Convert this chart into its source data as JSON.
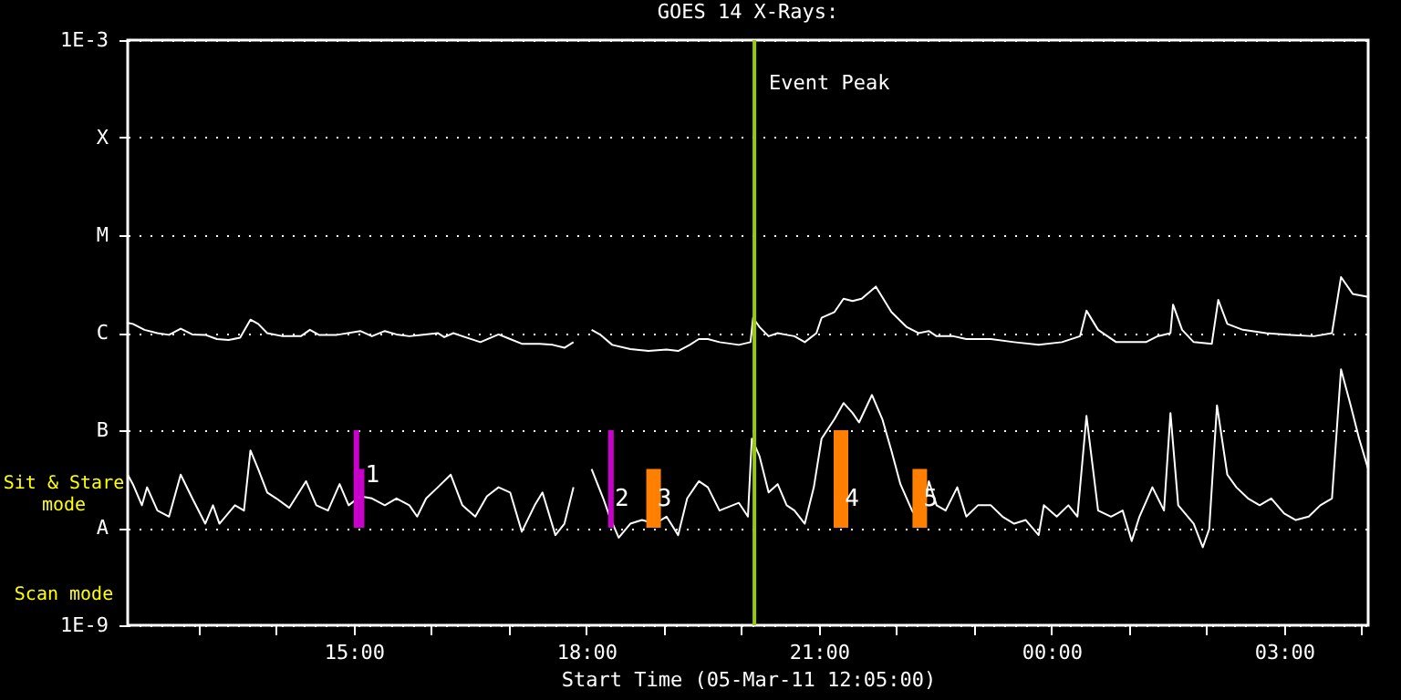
{
  "chart_data": {
    "type": "line",
    "title": "GOES 14 X-Rays:",
    "xlabel": "Start Time (05-Mar-11 12:05:00)",
    "xlim": [
      "--03-05T12:05",
      "--03-06T04:05"
    ],
    "xticks": [
      {
        "value": "--03-05T13:00",
        "label": null
      },
      {
        "value": "--03-05T14:00",
        "label": null
      },
      {
        "value": "--03-05T15:00",
        "label": "15:00"
      },
      {
        "value": "--03-05T16:00",
        "label": null
      },
      {
        "value": "--03-05T17:00",
        "label": null
      },
      {
        "value": "--03-05T18:00",
        "label": "18:00"
      },
      {
        "value": "--03-05T19:00",
        "label": null
      },
      {
        "value": "--03-05T20:00",
        "label": null
      },
      {
        "value": "--03-05T21:00",
        "label": "21:00"
      },
      {
        "value": "--03-05T22:00",
        "label": null
      },
      {
        "value": "--03-05T23:00",
        "label": null
      },
      {
        "value": "--03-06T00:00",
        "label": "00:00"
      },
      {
        "value": "--03-06T01:00",
        "label": null
      },
      {
        "value": "--03-06T02:00",
        "label": null
      },
      {
        "value": "--03-06T03:00",
        "label": "03:00"
      },
      {
        "value": "--03-06T04:00",
        "label": null
      }
    ],
    "ylim": [
      1e-09,
      0.001
    ],
    "yticks": [
      {
        "value": 1e-09,
        "label": "1E-9"
      },
      {
        "value": 1e-08,
        "label": "A"
      },
      {
        "value": 1e-07,
        "label": "B"
      },
      {
        "value": 1e-06,
        "label": "C"
      },
      {
        "value": 1e-05,
        "label": "M"
      },
      {
        "value": 0.0001,
        "label": "X"
      },
      {
        "value": 0.001,
        "label": "1E-3"
      }
    ],
    "log": "y",
    "grid": "y",
    "series": [
      {
        "color": "#ffffff",
        "x": [
          "--03-05T12:05",
          "--03-05T12:09",
          "--03-05T12:18",
          "--03-05T12:28",
          "--03-05T12:37",
          "--03-05T12:46",
          "--03-05T12:55",
          "--03-05T13:05",
          "--03-05T13:14",
          "--03-05T13:23",
          "--03-05T13:32",
          "--03-05T13:40",
          "--03-05T13:46",
          "--03-05T13:53",
          "--03-05T14:05",
          "--03-05T14:19",
          "--03-05T14:26",
          "--03-05T14:33",
          "--03-05T14:47",
          "--03-05T15:05",
          "--03-05T15:14",
          "--03-05T15:24",
          "--03-05T15:33",
          "--03-05T15:43",
          "--03-05T15:52",
          "--03-05T16:05",
          "--03-05T16:10",
          "--03-05T16:17",
          "--03-05T16:24",
          "--03-05T16:38",
          "--03-05T16:52",
          "--03-05T17:01",
          "--03-05T17:10",
          "--03-05T17:24",
          "--03-05T17:34",
          "--03-05T17:43",
          "--03-05T17:50",
          "--03-05T17:57",
          "--03-05T18:04",
          "--03-05T18:11",
          "--03-05T18:20",
          "--03-05T18:34",
          "--03-05T18:48",
          "--03-05T19:02",
          "--03-05T19:11",
          "--03-05T19:20",
          "--03-05T19:27",
          "--03-05T19:34",
          "--03-05T19:43",
          "--03-05T19:58",
          "--03-05T20:07",
          "--03-05T20:09",
          "--03-05T20:14",
          "--03-05T20:21",
          "--03-05T20:28",
          "--03-05T20:35",
          "--03-05T20:41",
          "--03-05T20:49",
          "--03-05T20:58",
          "--03-05T21:02",
          "--03-05T21:12",
          "--03-05T21:19",
          "--03-05T21:26",
          "--03-05T21:33",
          "--03-05T21:44",
          "--03-05T21:56",
          "--03-05T22:08",
          "--03-05T22:17",
          "--03-05T22:25",
          "--03-05T22:31",
          "--03-05T22:44",
          "--03-05T22:54",
          "--03-05T23:13",
          "--03-05T23:31",
          "--03-05T23:50",
          "--03-06T00:08",
          "--03-06T00:22",
          "--03-06T00:27",
          "--03-06T00:36",
          "--03-06T00:50",
          "--03-06T01:13",
          "--03-06T01:22",
          "--03-06T01:32",
          "--03-06T01:34",
          "--03-06T01:41",
          "--03-06T01:50",
          "--03-06T02:04",
          "--03-06T02:09",
          "--03-06T02:16",
          "--03-06T02:28",
          "--03-06T02:46",
          "--03-06T03:05",
          "--03-06T03:23",
          "--03-06T03:37",
          "--03-06T03:44",
          "--03-06T03:53",
          "--03-06T04:05"
        ],
        "values": [
          1.26e-06,
          1.23e-06,
          1.07e-06,
          9.9e-07,
          9.5e-07,
          1.1e-06,
          9.6e-07,
          9.5e-07,
          8.6e-07,
          8.4e-07,
          8.9e-07,
          1.36e-06,
          1.23e-06,
          9.9e-07,
          9.2e-07,
          9.2e-07,
          1.07e-06,
          9.5e-07,
          9.5e-07,
          1.04e-06,
          9.2e-07,
          1.04e-06,
          9.6e-07,
          9.2e-07,
          9.5e-07,
          9.9e-07,
          9e-07,
          9.9e-07,
          9.2e-07,
          8e-07,
          9.6e-07,
          8.6e-07,
          7.7e-07,
          7.7e-07,
          7.5e-07,
          7e-07,
          8e-07,
          null,
          1.07e-06,
          9.5e-07,
          7.5e-07,
          6.8e-07,
          6.5e-07,
          6.7e-07,
          6.5e-07,
          7.5e-07,
          8.6e-07,
          8.6e-07,
          8e-07,
          7.5e-07,
          8e-07,
          1.42e-06,
          1.14e-06,
          9.2e-07,
          9.9e-07,
          9.5e-07,
          9.2e-07,
          8e-07,
          9.9e-07,
          1.42e-06,
          1.63e-06,
          2.23e-06,
          2.11e-06,
          2.23e-06,
          2.97e-06,
          1.63e-06,
          1.14e-06,
          9.9e-07,
          1.04e-06,
          9.2e-07,
          9.2e-07,
          8.6e-07,
          8.6e-07,
          8e-07,
          7.5e-07,
          8e-07,
          9.2e-07,
          1.68e-06,
          1.07e-06,
          8e-07,
          8e-07,
          9.2e-07,
          9.9e-07,
          1.94e-06,
          1.07e-06,
          8e-07,
          7.7e-07,
          2.17e-06,
          1.23e-06,
          1.07e-06,
          9.9e-07,
          9.5e-07,
          9.2e-07,
          9.9e-07,
          3.72e-06,
          2.5e-06,
          2.33e-06
        ]
      },
      {
        "color": "#ffffff",
        "x": [
          "--03-05T12:05",
          "--03-05T12:09",
          "--03-05T12:16",
          "--03-05T12:20",
          "--03-05T12:28",
          "--03-05T12:37",
          "--03-05T12:46",
          "--03-05T12:55",
          "--03-05T13:05",
          "--03-05T13:11",
          "--03-05T13:16",
          "--03-05T13:28",
          "--03-05T13:35",
          "--03-05T13:40",
          "--03-05T13:46",
          "--03-05T13:53",
          "--03-05T14:00",
          "--03-05T14:10",
          "--03-05T14:23",
          "--03-05T14:31",
          "--03-05T14:40",
          "--03-05T14:49",
          "--03-05T14:56",
          "--03-05T15:05",
          "--03-05T15:14",
          "--03-05T15:24",
          "--03-05T15:33",
          "--03-05T15:43",
          "--03-05T15:49",
          "--03-05T15:56",
          "--03-05T16:05",
          "--03-05T16:15",
          "--03-05T16:24",
          "--03-05T16:34",
          "--03-05T16:43",
          "--03-05T16:52",
          "--03-05T17:01",
          "--03-05T17:10",
          "--03-05T17:20",
          "--03-05T17:26",
          "--03-05T17:36",
          "--03-05T17:43",
          "--03-05T17:50",
          "--03-05T17:57",
          "--03-05T18:04",
          "--03-05T18:13",
          "--03-05T18:18",
          "--03-05T18:25",
          "--03-05T18:34",
          "--03-05T18:43",
          "--03-05T18:53",
          "--03-05T19:02",
          "--03-05T19:11",
          "--03-05T19:18",
          "--03-05T19:27",
          "--03-05T19:34",
          "--03-05T19:43",
          "--03-05T19:58",
          "--03-05T20:05",
          "--03-05T20:08",
          "--03-05T20:14",
          "--03-05T20:21",
          "--03-05T20:28",
          "--03-05T20:35",
          "--03-05T20:41",
          "--03-05T20:49",
          "--03-05T20:56",
          "--03-05T21:02",
          "--03-05T21:12",
          "--03-05T21:19",
          "--03-05T21:26",
          "--03-05T21:31",
          "--03-05T21:41",
          "--03-05T21:49",
          "--03-05T21:56",
          "--03-05T22:03",
          "--03-05T22:12",
          "--03-05T22:19",
          "--03-05T22:25",
          "--03-05T22:31",
          "--03-05T22:38",
          "--03-05T22:47",
          "--03-05T22:54",
          "--03-05T23:03",
          "--03-05T23:13",
          "--03-05T23:22",
          "--03-05T23:31",
          "--03-05T23:40",
          "--03-05T23:50",
          "--03-05T23:54",
          "--03-06T00:04",
          "--03-06T00:13",
          "--03-06T00:20",
          "--03-06T00:27",
          "--03-06T00:36",
          "--03-06T00:46",
          "--03-06T00:55",
          "--03-06T01:02",
          "--03-06T01:08",
          "--03-06T01:18",
          "--03-06T01:27",
          "--03-06T01:32",
          "--03-06T01:38",
          "--03-06T01:50",
          "--03-06T01:57",
          "--03-06T02:02",
          "--03-06T02:08",
          "--03-06T02:16",
          "--03-06T02:23",
          "--03-06T02:32",
          "--03-06T02:41",
          "--03-06T02:50",
          "--03-06T03:00",
          "--03-06T03:09",
          "--03-06T03:19",
          "--03-06T03:28",
          "--03-06T03:37",
          "--03-06T03:44",
          "--03-06T03:51",
          "--03-06T03:58",
          "--03-06T04:05"
        ],
        "values": [
          3.5e-08,
          2.8e-08,
          1.7e-08,
          2.6e-08,
          1.5e-08,
          1.3e-08,
          3.5e-08,
          2e-08,
          1.1e-08,
          1.7e-08,
          1.1e-08,
          1.7e-08,
          1.5e-08,
          6.2e-08,
          4e-08,
          2.3e-08,
          2e-08,
          1.6e-08,
          3e-08,
          1.7e-08,
          1.5e-08,
          2.8e-08,
          1.7e-08,
          2.1e-08,
          2e-08,
          1.7e-08,
          2e-08,
          1.7e-08,
          1.3e-08,
          2e-08,
          2.6e-08,
          3.5e-08,
          1.7e-08,
          1.3e-08,
          2.1e-08,
          2.6e-08,
          2.3e-08,
          9.1e-09,
          1.7e-08,
          2.3e-08,
          8.4e-09,
          1.1e-08,
          2.6e-08,
          null,
          4e-08,
          2e-08,
          1.3e-08,
          7.9e-09,
          1.1e-08,
          1.2e-08,
          1.1e-08,
          1.3e-08,
          8.4e-09,
          2e-08,
          3e-08,
          2.6e-08,
          1.5e-08,
          1.8e-08,
          1.3e-08,
          8.2e-08,
          5.4e-08,
          2.3e-08,
          2.8e-08,
          1.7e-08,
          1.5e-08,
          1.1e-08,
          2.6e-08,
          8.2e-08,
          1.3e-07,
          1.9e-07,
          1.5e-07,
          1.2e-07,
          2.3e-07,
          1.3e-07,
          6.2e-08,
          2.8e-08,
          1.5e-08,
          1.1e-08,
          3e-08,
          1.7e-08,
          1.5e-08,
          2.6e-08,
          1.3e-08,
          1.7e-08,
          1.7e-08,
          1.3e-08,
          1.1e-08,
          1.2e-08,
          8.4e-09,
          1.7e-08,
          1.3e-08,
          1.7e-08,
          1.3e-08,
          1.4e-07,
          1.5e-08,
          1.3e-08,
          1.5e-08,
          7.3e-09,
          1.3e-08,
          2.6e-08,
          1.5e-08,
          1.5e-07,
          1.7e-08,
          1.1e-08,
          6.3e-09,
          9.7e-09,
          1.8e-07,
          3.5e-08,
          2.6e-08,
          2e-08,
          1.7e-08,
          2e-08,
          1.4e-08,
          1.2e-08,
          1.3e-08,
          1.7e-08,
          2e-08,
          4.2e-07,
          1.9e-07,
          8.2e-08,
          4e-08
        ]
      },
      {
        "type": "bar",
        "color": "#cc00cc",
        "x": [
          "--03-05T15:02",
          "--03-05T15:06",
          "--03-05T18:19"
        ],
        "base": [
          1e-08,
          1e-08,
          1e-08
        ],
        "values": [
          9e-08,
          3e-08,
          9e-08
        ]
      },
      {
        "type": "bar",
        "color": "#ff8000",
        "x": [
          "--03-05T18:52",
          "--03-05T21:17",
          "--03-05T22:18"
        ],
        "base": [
          1e-08,
          1e-08,
          1e-08
        ],
        "values": [
          3e-08,
          9e-08,
          3e-08
        ]
      }
    ],
    "ref_lines": [
      {
        "axis": "x",
        "value": "--03-05T20:10",
        "label": "Event Peak",
        "color": "#99cc00"
      }
    ],
    "annotations": [
      "Sit & Stare mode",
      "Scan mode",
      {
        "text": "1",
        "x": "--03-05T15:06",
        "y": 3.5e-08
      },
      {
        "text": "2",
        "x": "--03-05T18:19",
        "y": 2e-08
      },
      {
        "text": "3",
        "x": "--03-05T18:52",
        "y": 2e-08
      },
      {
        "text": "4",
        "x": "--03-05T21:17",
        "y": 2e-08
      },
      {
        "text": "5",
        "x": "--03-05T22:18",
        "y": 2e-08
      }
    ]
  }
}
